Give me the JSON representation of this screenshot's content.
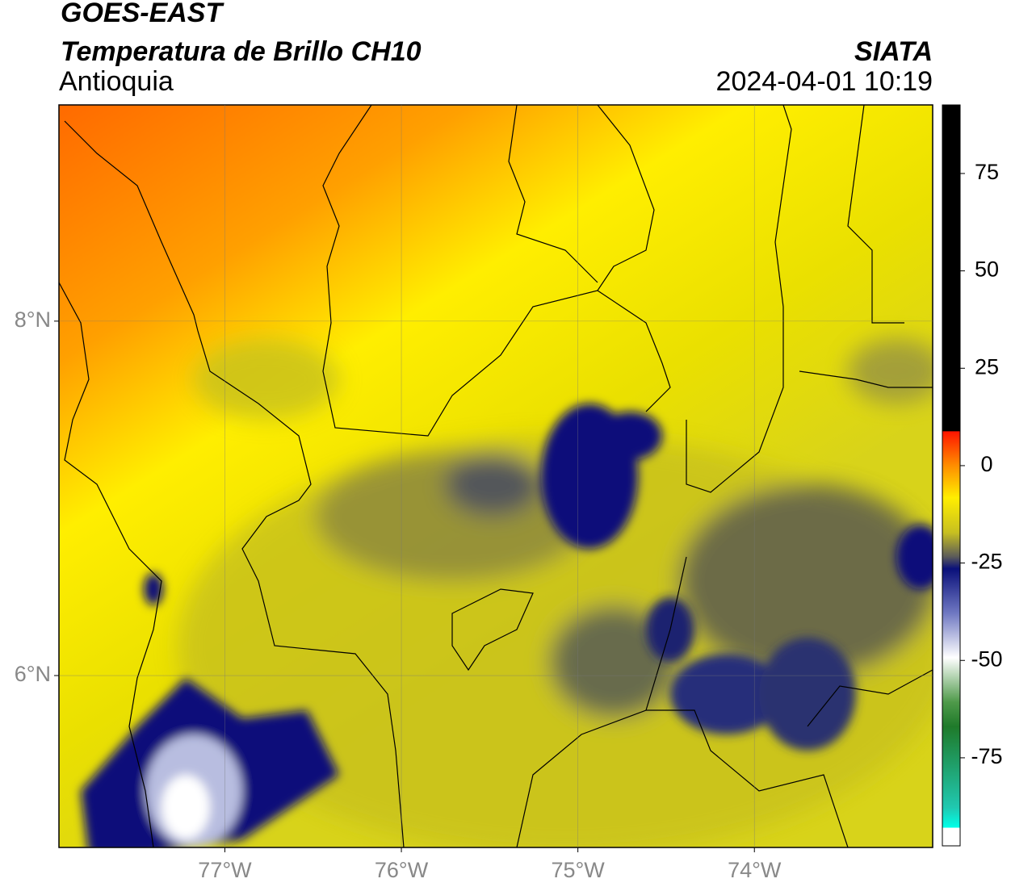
{
  "chart_data": {
    "type": "map",
    "title": "GOES-EAST",
    "subtitle": "Temperatura de Brillo CH10",
    "region": "Antioquia",
    "source": "SIATA",
    "timestamp": "2024-04-01 10:19",
    "xlim": [
      -77.94,
      -72.99
    ],
    "ylim": [
      5.03,
      9.22
    ],
    "xticks": [
      {
        "value": -77,
        "label": "77°W"
      },
      {
        "value": -76,
        "label": "76°W"
      },
      {
        "value": -75,
        "label": "75°W"
      },
      {
        "value": -74,
        "label": "74°W"
      }
    ],
    "yticks": [
      {
        "value": 6,
        "label": "6°N"
      },
      {
        "value": 8,
        "label": "8°N"
      }
    ],
    "grid": true,
    "colorbar_lim": [
      -97.6,
      92.6
    ],
    "colorbar_ticks": [
      -75,
      -50,
      -25,
      0,
      25,
      50,
      75
    ]
  }
}
